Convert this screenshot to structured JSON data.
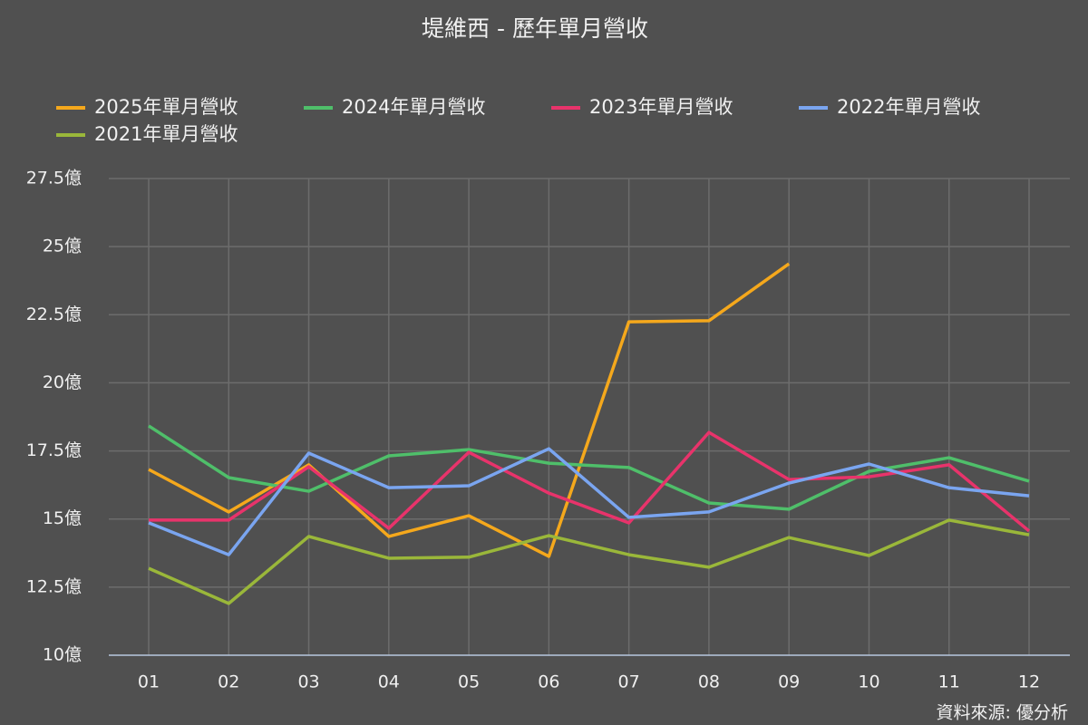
{
  "chart_data": {
    "type": "line",
    "title": "堤維西 - 歷年單月營收",
    "categories": [
      "01",
      "02",
      "03",
      "04",
      "05",
      "06",
      "07",
      "08",
      "09",
      "10",
      "11",
      "12"
    ],
    "series": [
      {
        "name": "2025年單月營收",
        "color": "#f5a81c",
        "values": [
          16.82,
          15.26,
          16.99,
          14.36,
          15.12,
          13.63,
          22.24,
          22.28,
          24.37,
          null,
          null,
          null
        ]
      },
      {
        "name": "2024年單月營收",
        "color": "#4fbf6a",
        "values": [
          18.42,
          16.52,
          16.02,
          17.32,
          17.55,
          17.05,
          16.89,
          15.59,
          15.36,
          16.75,
          17.25,
          16.39
        ]
      },
      {
        "name": "2023年單月營收",
        "color": "#e8336b",
        "values": [
          14.96,
          14.96,
          16.92,
          14.66,
          17.45,
          15.95,
          14.86,
          18.18,
          16.45,
          16.55,
          16.99,
          14.56
        ]
      },
      {
        "name": "2022年單月營收",
        "color": "#7aa5f0",
        "values": [
          14.86,
          13.69,
          17.42,
          16.15,
          16.22,
          17.58,
          15.06,
          15.26,
          16.32,
          17.02,
          16.15,
          15.85
        ]
      },
      {
        "name": "2021年單月營收",
        "color": "#9ab73a",
        "values": [
          13.19,
          11.9,
          14.36,
          13.56,
          13.6,
          14.39,
          13.69,
          13.23,
          14.32,
          13.66,
          14.96,
          14.42
        ]
      }
    ],
    "ylim": [
      10,
      27.5
    ],
    "yticks": [
      {
        "value": 10,
        "label": "10億"
      },
      {
        "value": 12.5,
        "label": "12.5億"
      },
      {
        "value": 15,
        "label": "15億"
      },
      {
        "value": 17.5,
        "label": "17.5億"
      },
      {
        "value": 20,
        "label": "20億"
      },
      {
        "value": 22.5,
        "label": "22.5億"
      },
      {
        "value": 25,
        "label": "25億"
      },
      {
        "value": 27.5,
        "label": "27.5億"
      }
    ],
    "grid": true,
    "legend": "top",
    "source": "資料來源: 優分析"
  }
}
